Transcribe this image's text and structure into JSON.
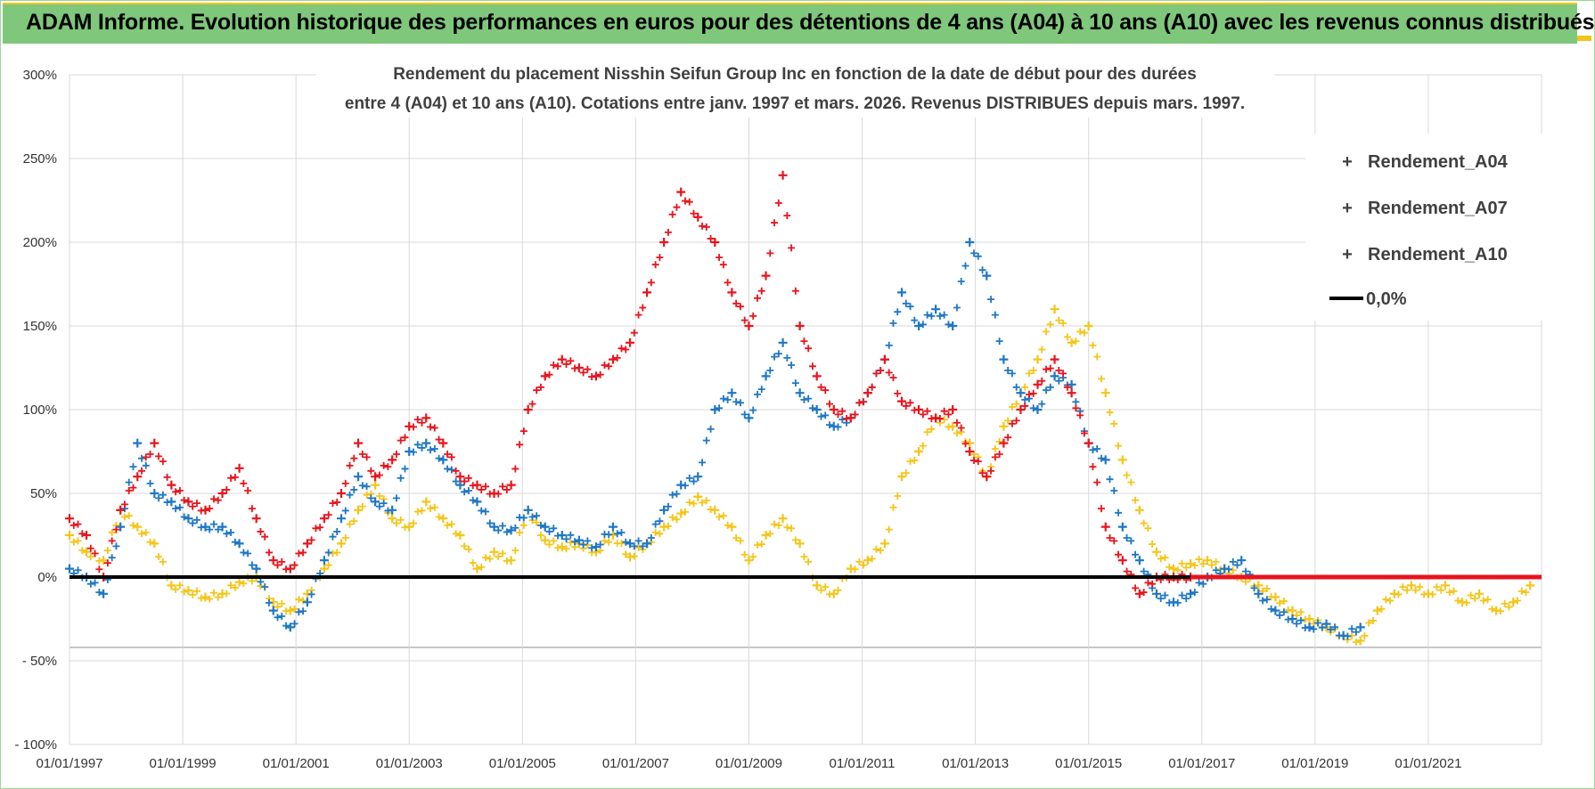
{
  "banner": {
    "title": "ADAM Informe. Evolution historique des performances en euros pour des détentions de 4 ans (A04) à 10 ans (A10) avec les revenus connus distribués"
  },
  "chart_data": {
    "type": "scatter",
    "title_lines": [
      "Rendement du placement Nisshin Seifun Group Inc en fonction de la date de début pour des durées",
      "entre 4 (A04) et 10 ans (A10).  Cotations entre janv. 1997 et mars. 2026. Revenus DISTRIBUES depuis mars. 1997."
    ],
    "xlabel": "",
    "ylabel": "",
    "x_ticks": [
      "01/01/1997",
      "01/01/1999",
      "01/01/2001",
      "01/01/2003",
      "01/01/2005",
      "01/01/2007",
      "01/01/2009",
      "01/01/2011",
      "01/01/2013",
      "01/01/2015",
      "01/01/2017",
      "01/01/2019",
      "01/01/2021"
    ],
    "y_ticks": [
      "300%",
      "250%",
      "200%",
      "150%",
      "100%",
      "50%",
      "0%",
      "- 50%",
      "- 100%"
    ],
    "ylim": [
      -100,
      300
    ],
    "xlim": [
      1997.0,
      2023.0
    ],
    "grid": true,
    "legend_position": "top-right",
    "legend": [
      "Rendement_A04",
      "Rendement_A07",
      "Rendement_A10",
      "0,0%"
    ],
    "colors": {
      "A04": "#f5c518",
      "A07": "#1f77c4",
      "A10": "#e8141c",
      "zero": "#000000",
      "grid": "#d9d9d9",
      "axis": "#bfbfbf"
    },
    "series": [
      {
        "name": "Rendement_A04",
        "color": "#f5c518",
        "x": [
          1997.0,
          1997.3,
          1997.6,
          1997.9,
          1998.2,
          1998.5,
          1998.8,
          1999.1,
          1999.4,
          1999.7,
          2000.0,
          2000.3,
          2000.6,
          2000.9,
          2001.2,
          2001.5,
          2001.8,
          2002.1,
          2002.4,
          2002.7,
          2003.0,
          2003.3,
          2003.6,
          2003.9,
          2004.2,
          2004.5,
          2004.8,
          2005.1,
          2005.4,
          2005.7,
          2006.0,
          2006.3,
          2006.6,
          2006.9,
          2007.2,
          2007.5,
          2007.8,
          2008.1,
          2008.4,
          2008.7,
          2009.0,
          2009.3,
          2009.6,
          2009.9,
          2010.2,
          2010.5,
          2010.8,
          2011.1,
          2011.4,
          2011.7,
          2012.0,
          2012.3,
          2012.6,
          2012.9,
          2013.2,
          2013.5,
          2013.8,
          2014.1,
          2014.4,
          2014.7,
          2015.0,
          2015.3,
          2015.6,
          2015.9,
          2016.2,
          2016.5,
          2016.8,
          2017.1,
          2017.4,
          2017.7,
          2018.0,
          2018.3,
          2018.6,
          2018.9,
          2019.2,
          2019.5,
          2019.8,
          2020.1,
          2020.4,
          2020.7,
          2021.0,
          2021.3,
          2021.6,
          2021.9,
          2022.2,
          2022.5,
          2022.8
        ],
        "values": [
          25,
          15,
          10,
          40,
          30,
          20,
          -5,
          -8,
          -12,
          -10,
          -3,
          0,
          -15,
          -20,
          -10,
          5,
          20,
          40,
          55,
          35,
          30,
          45,
          35,
          25,
          5,
          15,
          10,
          40,
          22,
          18,
          20,
          15,
          25,
          12,
          20,
          30,
          38,
          48,
          40,
          30,
          10,
          25,
          35,
          20,
          -5,
          -10,
          5,
          10,
          20,
          60,
          75,
          95,
          90,
          80,
          60,
          90,
          110,
          130,
          160,
          140,
          150,
          110,
          70,
          40,
          15,
          5,
          8,
          10,
          5,
          0,
          -5,
          -12,
          -20,
          -25,
          -30,
          -35,
          -38,
          -20,
          -10,
          -5,
          -10,
          -5,
          -15,
          -10,
          -20,
          -15,
          -5
        ]
      },
      {
        "name": "Rendement_A07",
        "color": "#1f77c4",
        "x": [
          1997.0,
          1997.3,
          1997.6,
          1997.9,
          1998.2,
          1998.5,
          1998.8,
          1999.1,
          1999.4,
          1999.7,
          2000.0,
          2000.3,
          2000.6,
          2000.9,
          2001.2,
          2001.5,
          2001.8,
          2002.1,
          2002.4,
          2002.7,
          2003.0,
          2003.3,
          2003.6,
          2003.9,
          2004.2,
          2004.5,
          2004.8,
          2005.1,
          2005.4,
          2005.7,
          2006.0,
          2006.3,
          2006.6,
          2006.9,
          2007.2,
          2007.5,
          2007.8,
          2008.1,
          2008.4,
          2008.7,
          2009.0,
          2009.3,
          2009.6,
          2009.9,
          2010.2,
          2010.5,
          2010.8,
          2011.1,
          2011.4,
          2011.7,
          2012.0,
          2012.3,
          2012.6,
          2012.9,
          2013.2,
          2013.5,
          2013.8,
          2014.1,
          2014.4,
          2014.7,
          2015.0,
          2015.3,
          2015.6,
          2015.9,
          2016.2,
          2016.5,
          2016.8,
          2017.1,
          2017.4,
          2017.7,
          2018.0,
          2018.3,
          2018.6,
          2018.9,
          2019.2,
          2019.5,
          2019.8
        ],
        "values": [
          5,
          0,
          -10,
          30,
          80,
          50,
          45,
          35,
          30,
          30,
          20,
          5,
          -20,
          -30,
          -15,
          10,
          35,
          60,
          45,
          40,
          75,
          80,
          70,
          55,
          45,
          30,
          28,
          40,
          30,
          25,
          22,
          18,
          30,
          20,
          20,
          40,
          55,
          60,
          100,
          110,
          95,
          120,
          140,
          110,
          100,
          90,
          95,
          110,
          130,
          170,
          150,
          160,
          150,
          200,
          180,
          130,
          110,
          100,
          120,
          115,
          80,
          70,
          30,
          10,
          -10,
          -15,
          -10,
          0,
          5,
          10,
          -10,
          -20,
          -25,
          -30,
          -28,
          -35,
          -30
        ]
      },
      {
        "name": "Rendement_A10",
        "color": "#e8141c",
        "x": [
          1997.0,
          1997.3,
          1997.6,
          1997.9,
          1998.2,
          1998.5,
          1998.8,
          1999.1,
          1999.4,
          1999.7,
          2000.0,
          2000.3,
          2000.6,
          2000.9,
          2001.2,
          2001.5,
          2001.8,
          2002.1,
          2002.4,
          2002.7,
          2003.0,
          2003.3,
          2003.6,
          2003.9,
          2004.2,
          2004.5,
          2004.8,
          2005.1,
          2005.4,
          2005.7,
          2006.0,
          2006.3,
          2006.6,
          2006.9,
          2007.2,
          2007.5,
          2007.8,
          2008.1,
          2008.4,
          2008.7,
          2009.0,
          2009.3,
          2009.6,
          2009.9,
          2010.2,
          2010.5,
          2010.8,
          2011.1,
          2011.4,
          2011.7,
          2012.0,
          2012.3,
          2012.6,
          2012.9,
          2013.2,
          2013.5,
          2013.8,
          2014.1,
          2014.4,
          2014.7,
          2015.0,
          2015.3,
          2015.6,
          2015.9,
          2016.2,
          2016.5,
          2016.8
        ],
        "values": [
          35,
          25,
          0,
          40,
          60,
          80,
          55,
          45,
          40,
          50,
          65,
          35,
          10,
          5,
          20,
          35,
          50,
          80,
          60,
          70,
          90,
          95,
          80,
          60,
          55,
          50,
          55,
          100,
          120,
          130,
          125,
          120,
          130,
          140,
          170,
          200,
          230,
          215,
          200,
          170,
          150,
          180,
          240,
          150,
          120,
          100,
          95,
          110,
          130,
          105,
          100,
          95,
          100,
          75,
          60,
          80,
          100,
          115,
          130,
          110,
          80,
          30,
          10,
          -10,
          0,
          0,
          0
        ]
      }
    ],
    "zero_line": {
      "name": "0,0%",
      "y": 0
    }
  }
}
